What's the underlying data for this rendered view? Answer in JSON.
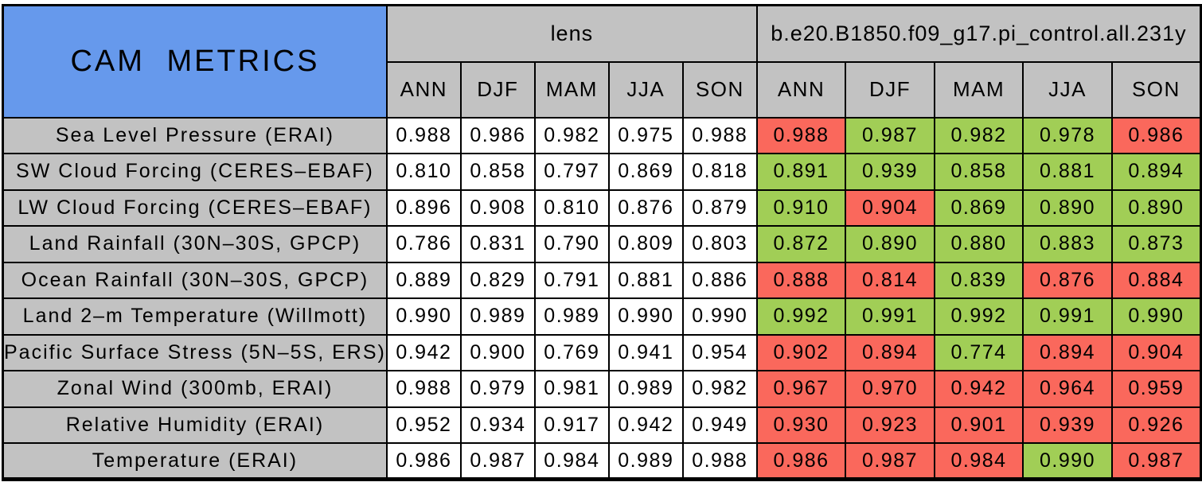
{
  "colors": {
    "blue": "#6699EC",
    "gray": "#C2C2C2",
    "red": "#FA685C",
    "green": "#A1CE56",
    "cell_white": "#FFFFFF",
    "border": "#000000"
  },
  "header": {
    "title": "CAM METRICS",
    "groups": [
      "lens",
      "b.e20.B1850.f09_g17.pi_control.all.231y"
    ],
    "seasons": [
      "ANN",
      "DJF",
      "MAM",
      "JJA",
      "SON"
    ]
  },
  "chart_data": {
    "type": "table",
    "title": "CAM METRICS",
    "column_groups": [
      {
        "name": "lens",
        "columns": [
          "ANN",
          "DJF",
          "MAM",
          "JJA",
          "SON"
        ]
      },
      {
        "name": "b.e20.B1850.f09_g17.pi_control.all.231y",
        "columns": [
          "ANN",
          "DJF",
          "MAM",
          "JJA",
          "SON"
        ]
      }
    ],
    "rows": [
      {
        "metric": "Sea Level Pressure (ERAI)",
        "lens": [
          "0.988",
          "0.986",
          "0.982",
          "0.975",
          "0.988"
        ],
        "control": [
          "0.988",
          "0.987",
          "0.982",
          "0.978",
          "0.986"
        ],
        "control_colors": [
          "red",
          "green",
          "green",
          "green",
          "red"
        ]
      },
      {
        "metric": "SW Cloud Forcing (CERES–EBAF)",
        "lens": [
          "0.810",
          "0.858",
          "0.797",
          "0.869",
          "0.818"
        ],
        "control": [
          "0.891",
          "0.939",
          "0.858",
          "0.881",
          "0.894"
        ],
        "control_colors": [
          "green",
          "green",
          "green",
          "green",
          "green"
        ]
      },
      {
        "metric": "LW Cloud Forcing (CERES–EBAF)",
        "lens": [
          "0.896",
          "0.908",
          "0.810",
          "0.876",
          "0.879"
        ],
        "control": [
          "0.910",
          "0.904",
          "0.869",
          "0.890",
          "0.890"
        ],
        "control_colors": [
          "green",
          "red",
          "green",
          "green",
          "green"
        ]
      },
      {
        "metric": "Land Rainfall (30N–30S, GPCP)",
        "lens": [
          "0.786",
          "0.831",
          "0.790",
          "0.809",
          "0.803"
        ],
        "control": [
          "0.872",
          "0.890",
          "0.880",
          "0.883",
          "0.873"
        ],
        "control_colors": [
          "green",
          "green",
          "green",
          "green",
          "green"
        ]
      },
      {
        "metric": "Ocean Rainfall (30N–30S, GPCP)",
        "lens": [
          "0.889",
          "0.829",
          "0.791",
          "0.881",
          "0.886"
        ],
        "control": [
          "0.888",
          "0.814",
          "0.839",
          "0.876",
          "0.884"
        ],
        "control_colors": [
          "red",
          "red",
          "green",
          "red",
          "red"
        ]
      },
      {
        "metric": "Land 2–m Temperature (Willmott)",
        "lens": [
          "0.990",
          "0.989",
          "0.989",
          "0.990",
          "0.990"
        ],
        "control": [
          "0.992",
          "0.991",
          "0.992",
          "0.991",
          "0.990"
        ],
        "control_colors": [
          "green",
          "green",
          "green",
          "green",
          "green"
        ]
      },
      {
        "metric": "Pacific Surface Stress (5N–5S, ERS)",
        "lens": [
          "0.942",
          "0.900",
          "0.769",
          "0.941",
          "0.954"
        ],
        "control": [
          "0.902",
          "0.894",
          "0.774",
          "0.894",
          "0.904"
        ],
        "control_colors": [
          "red",
          "red",
          "green",
          "red",
          "red"
        ]
      },
      {
        "metric": "Zonal Wind (300mb, ERAI)",
        "lens": [
          "0.988",
          "0.979",
          "0.981",
          "0.989",
          "0.982"
        ],
        "control": [
          "0.967",
          "0.970",
          "0.942",
          "0.964",
          "0.959"
        ],
        "control_colors": [
          "red",
          "red",
          "red",
          "red",
          "red"
        ]
      },
      {
        "metric": "Relative Humidity (ERAI)",
        "lens": [
          "0.952",
          "0.934",
          "0.917",
          "0.942",
          "0.949"
        ],
        "control": [
          "0.930",
          "0.923",
          "0.901",
          "0.939",
          "0.926"
        ],
        "control_colors": [
          "red",
          "red",
          "red",
          "red",
          "red"
        ]
      },
      {
        "metric": "Temperature (ERAI)",
        "lens": [
          "0.986",
          "0.987",
          "0.984",
          "0.989",
          "0.988"
        ],
        "control": [
          "0.986",
          "0.987",
          "0.984",
          "0.990",
          "0.987"
        ],
        "control_colors": [
          "red",
          "red",
          "red",
          "green",
          "red"
        ]
      }
    ]
  }
}
